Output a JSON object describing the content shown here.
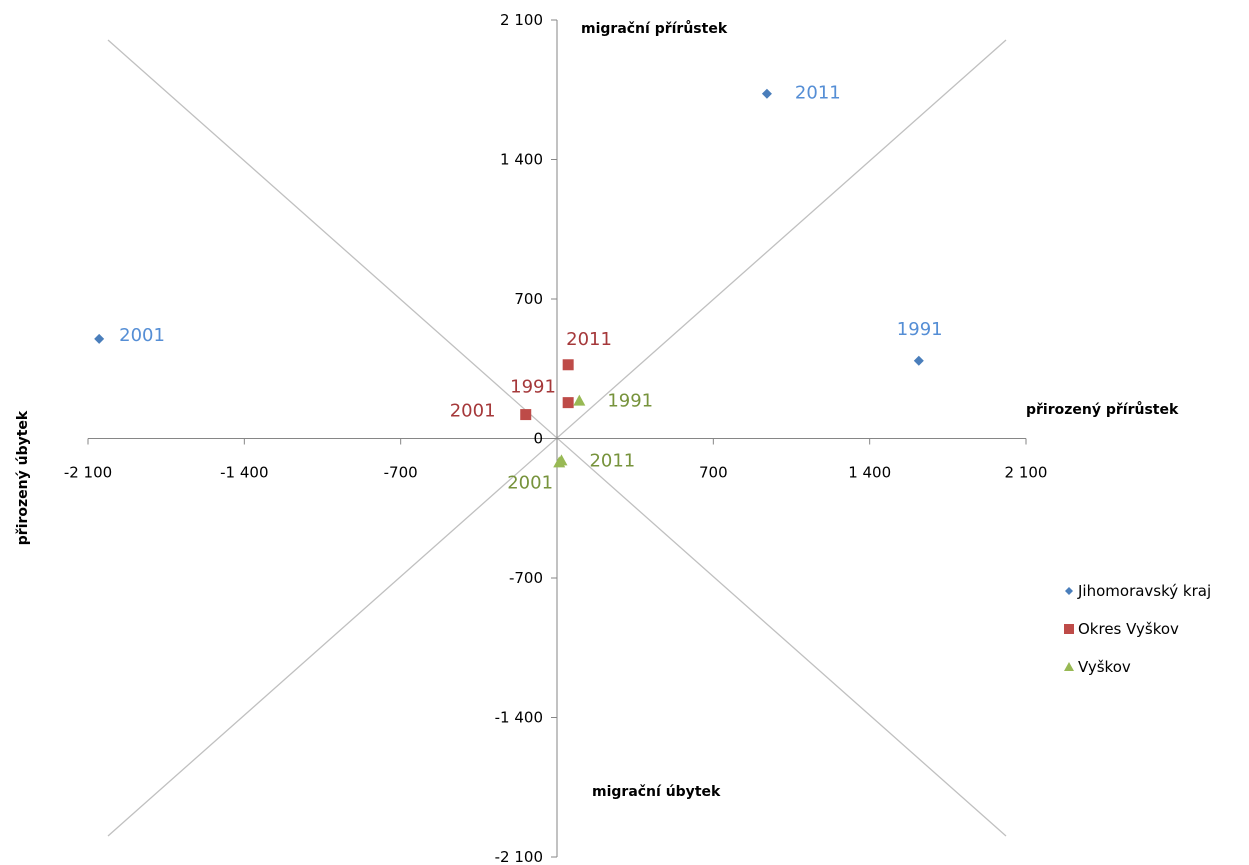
{
  "chart_data": {
    "type": "scatter",
    "title": "",
    "xlim": [
      -2100,
      2100
    ],
    "ylim": [
      -2100,
      2100
    ],
    "x_ticks": [
      -2100,
      -1400,
      -700,
      0,
      700,
      1400,
      2100
    ],
    "y_ticks": [
      -2100,
      -1400,
      -700,
      0,
      700,
      1400,
      2100
    ],
    "x_tick_labels": [
      "-2 100",
      "-1 400",
      "-700",
      "0",
      "700",
      "1 400",
      "2 100"
    ],
    "y_tick_labels": [
      "-2 100",
      "-1 400",
      "-700",
      "0",
      "700",
      "1 400",
      "2 100"
    ],
    "quadrant_labels": {
      "top": "migrační přírůstek",
      "bottom": "migrační úbytek",
      "right": "přirozený přírůstek",
      "left": "přirozený úbytek"
    },
    "diagonals": true,
    "legend_position": "right",
    "series": [
      {
        "name": "Jihomoravský kraj",
        "marker": "diamond",
        "color": "#4a7ebb",
        "label_color": "#558ed5",
        "points": [
          {
            "label": "1991",
            "x": 1620,
            "y": 390
          },
          {
            "label": "2001",
            "x": -2050,
            "y": 500
          },
          {
            "label": "2011",
            "x": 940,
            "y": 1730
          }
        ]
      },
      {
        "name": "Okres Vyškov",
        "marker": "square",
        "color": "#be4b48",
        "label_color": "#a5383a",
        "points": [
          {
            "label": "1991",
            "x": 50,
            "y": 180
          },
          {
            "label": "2001",
            "x": -140,
            "y": 120
          },
          {
            "label": "2011",
            "x": 50,
            "y": 370
          }
        ]
      },
      {
        "name": "Vyškov",
        "marker": "triangle",
        "color": "#98b954",
        "label_color": "#77933c",
        "points": [
          {
            "label": "1991",
            "x": 100,
            "y": 190
          },
          {
            "label": "2001",
            "x": 10,
            "y": -120
          },
          {
            "label": "2011",
            "x": 20,
            "y": -110
          }
        ]
      }
    ]
  }
}
